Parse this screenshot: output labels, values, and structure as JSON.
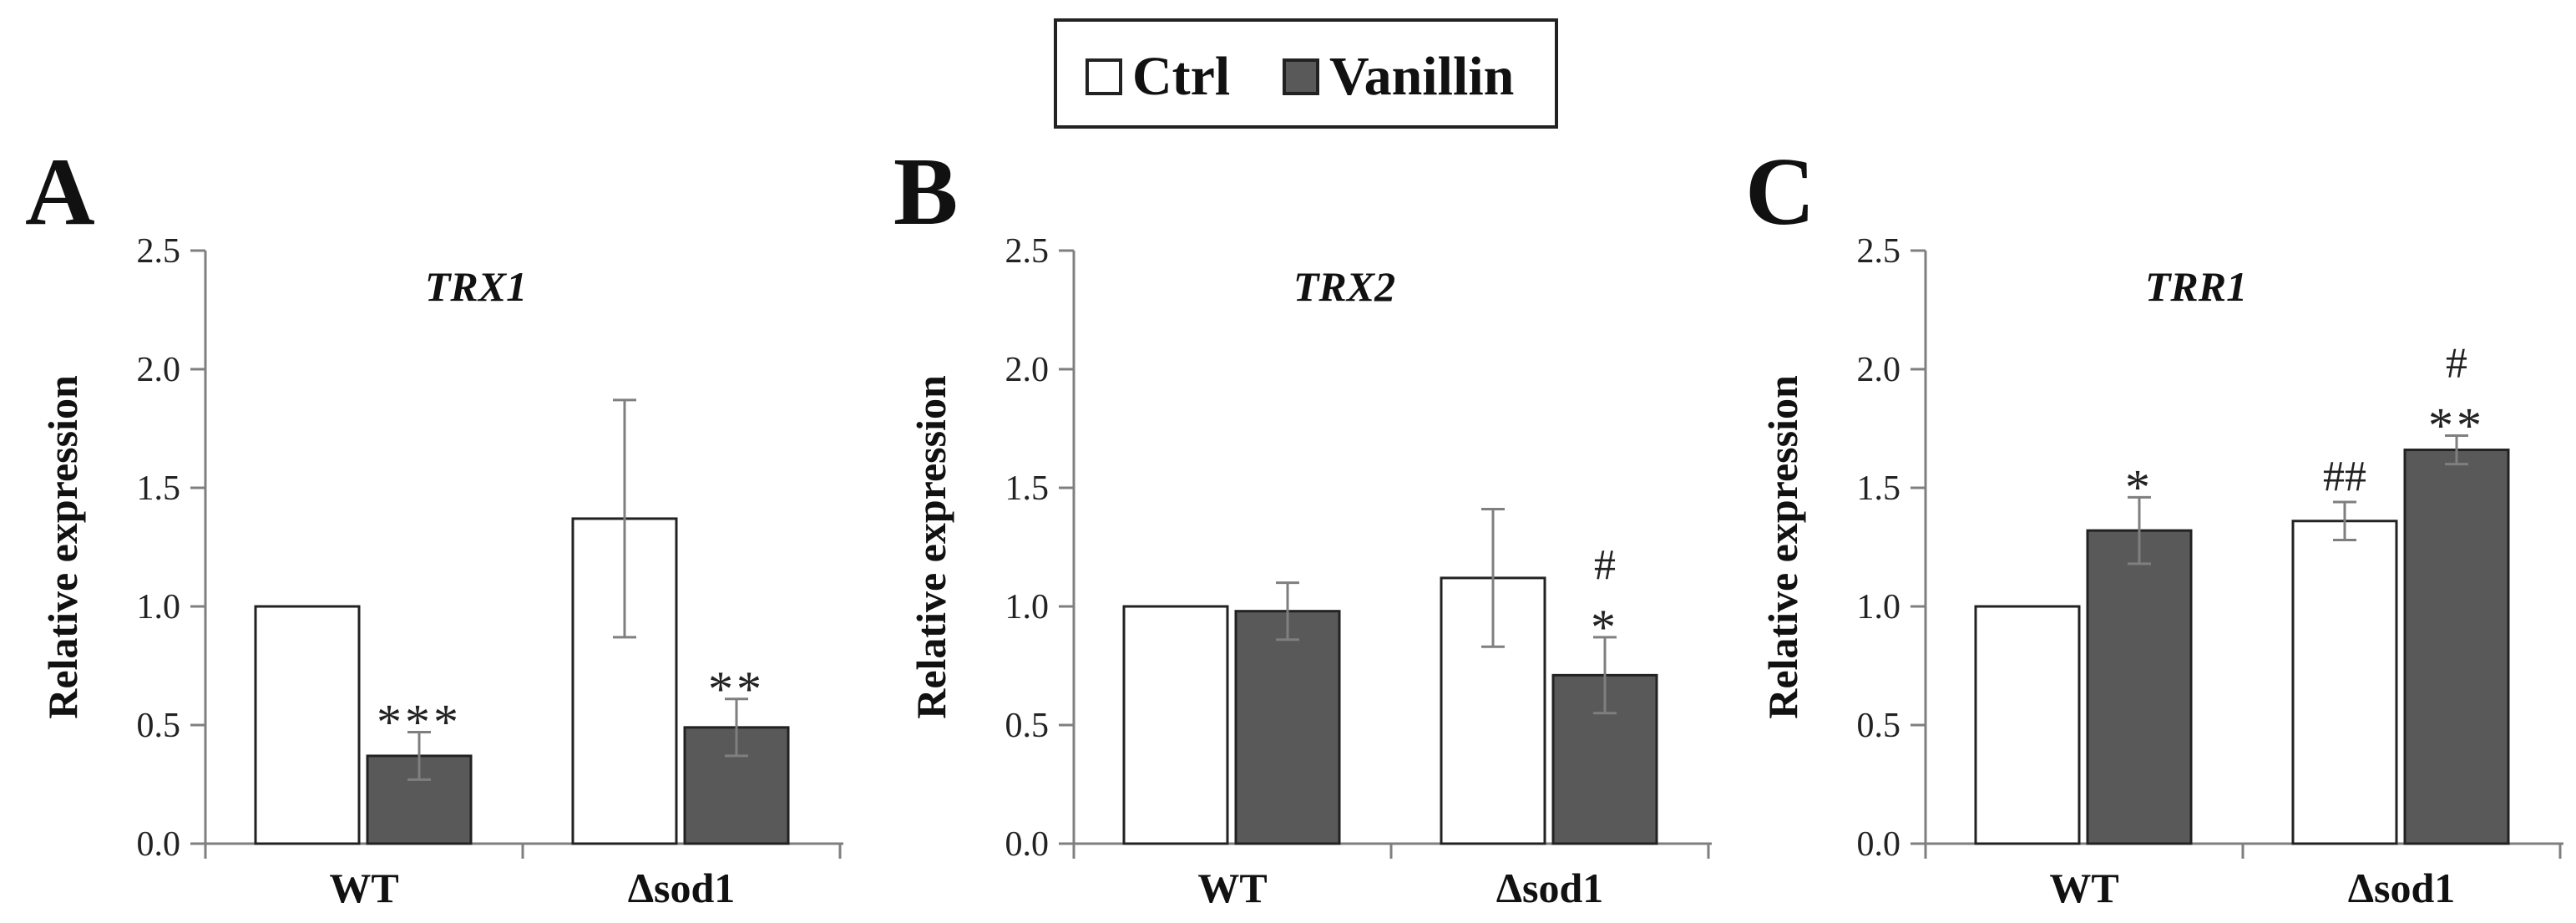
{
  "legend": {
    "entries": [
      {
        "label": "Ctrl",
        "color": "#ffffff"
      },
      {
        "label": "Vanillin",
        "color": "#595959"
      }
    ]
  },
  "colors": {
    "ctrl": "#ffffff",
    "vanillin": "#595959",
    "axis": "#7f7f7f",
    "outline": "#222222",
    "errorbar": "#7f7f7f"
  },
  "chart_data": [
    {
      "type": "bar",
      "panel_label": "A",
      "title": "TRX1",
      "ylabel": "Relative expression",
      "xlabel": "",
      "categories": [
        "WT",
        "Δsod1"
      ],
      "ylim": [
        0,
        2.5
      ],
      "yticks": [
        "0.0",
        "0.5",
        "1.0",
        "1.5",
        "2.0",
        "2.5"
      ],
      "series": [
        {
          "name": "Ctrl",
          "values": [
            1.0,
            1.37
          ],
          "errors": [
            0.0,
            0.5
          ]
        },
        {
          "name": "Vanillin",
          "values": [
            0.37,
            0.49
          ],
          "errors": [
            0.1,
            0.12
          ]
        }
      ],
      "annotations": [
        {
          "category": 0,
          "series": 1,
          "lines": [
            "***"
          ]
        },
        {
          "category": 1,
          "series": 1,
          "lines": [
            "**"
          ]
        }
      ]
    },
    {
      "type": "bar",
      "panel_label": "B",
      "title": "TRX2",
      "ylabel": "Relative expression",
      "xlabel": "",
      "categories": [
        "WT",
        "Δsod1"
      ],
      "ylim": [
        0,
        2.5
      ],
      "yticks": [
        "0.0",
        "0.5",
        "1.0",
        "1.5",
        "2.0",
        "2.5"
      ],
      "series": [
        {
          "name": "Ctrl",
          "values": [
            1.0,
            1.12
          ],
          "errors": [
            0.0,
            0.29
          ]
        },
        {
          "name": "Vanillin",
          "values": [
            0.98,
            0.71
          ],
          "errors": [
            0.12,
            0.16
          ]
        }
      ],
      "annotations": [
        {
          "category": 1,
          "series": 1,
          "lines": [
            "#",
            "*"
          ]
        }
      ]
    },
    {
      "type": "bar",
      "panel_label": "C",
      "title": "TRR1",
      "ylabel": "Relative expression",
      "xlabel": "",
      "categories": [
        "WT",
        "Δsod1"
      ],
      "ylim": [
        0,
        2.5
      ],
      "yticks": [
        "0.0",
        "0.5",
        "1.0",
        "1.5",
        "2.0",
        "2.5"
      ],
      "series": [
        {
          "name": "Ctrl",
          "values": [
            1.0,
            1.36
          ],
          "errors": [
            0.0,
            0.08
          ]
        },
        {
          "name": "Vanillin",
          "values": [
            1.32,
            1.66
          ],
          "errors": [
            0.14,
            0.06
          ]
        }
      ],
      "annotations": [
        {
          "category": 0,
          "series": 1,
          "lines": [
            "*"
          ]
        },
        {
          "category": 1,
          "series": 0,
          "lines": [
            "##"
          ]
        },
        {
          "category": 1,
          "series": 1,
          "lines": [
            "#",
            "**"
          ]
        }
      ]
    }
  ]
}
